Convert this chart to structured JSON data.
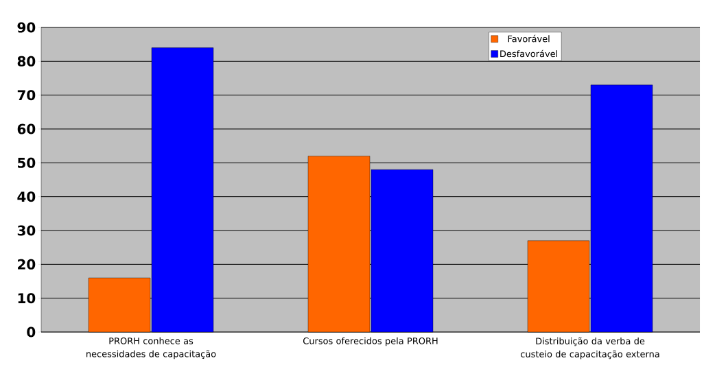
{
  "chart_data": {
    "type": "bar",
    "categories": [
      "PRORH conhece as necessidades de capacitação",
      "Cursos oferecidos pela PRORH",
      "Distribuição da verba de custeio de capacitação externa"
    ],
    "series": [
      {
        "name": "Favorável",
        "color": "#ff6600",
        "values": [
          16,
          52,
          27
        ]
      },
      {
        "name": "Desfavorável",
        "color": "#0000ff",
        "values": [
          84,
          48,
          73
        ]
      }
    ],
    "ylim": [
      0,
      90
    ],
    "yticks": [
      0,
      10,
      20,
      30,
      40,
      50,
      60,
      70,
      80,
      90
    ],
    "grid": "y",
    "legend": "top right"
  }
}
